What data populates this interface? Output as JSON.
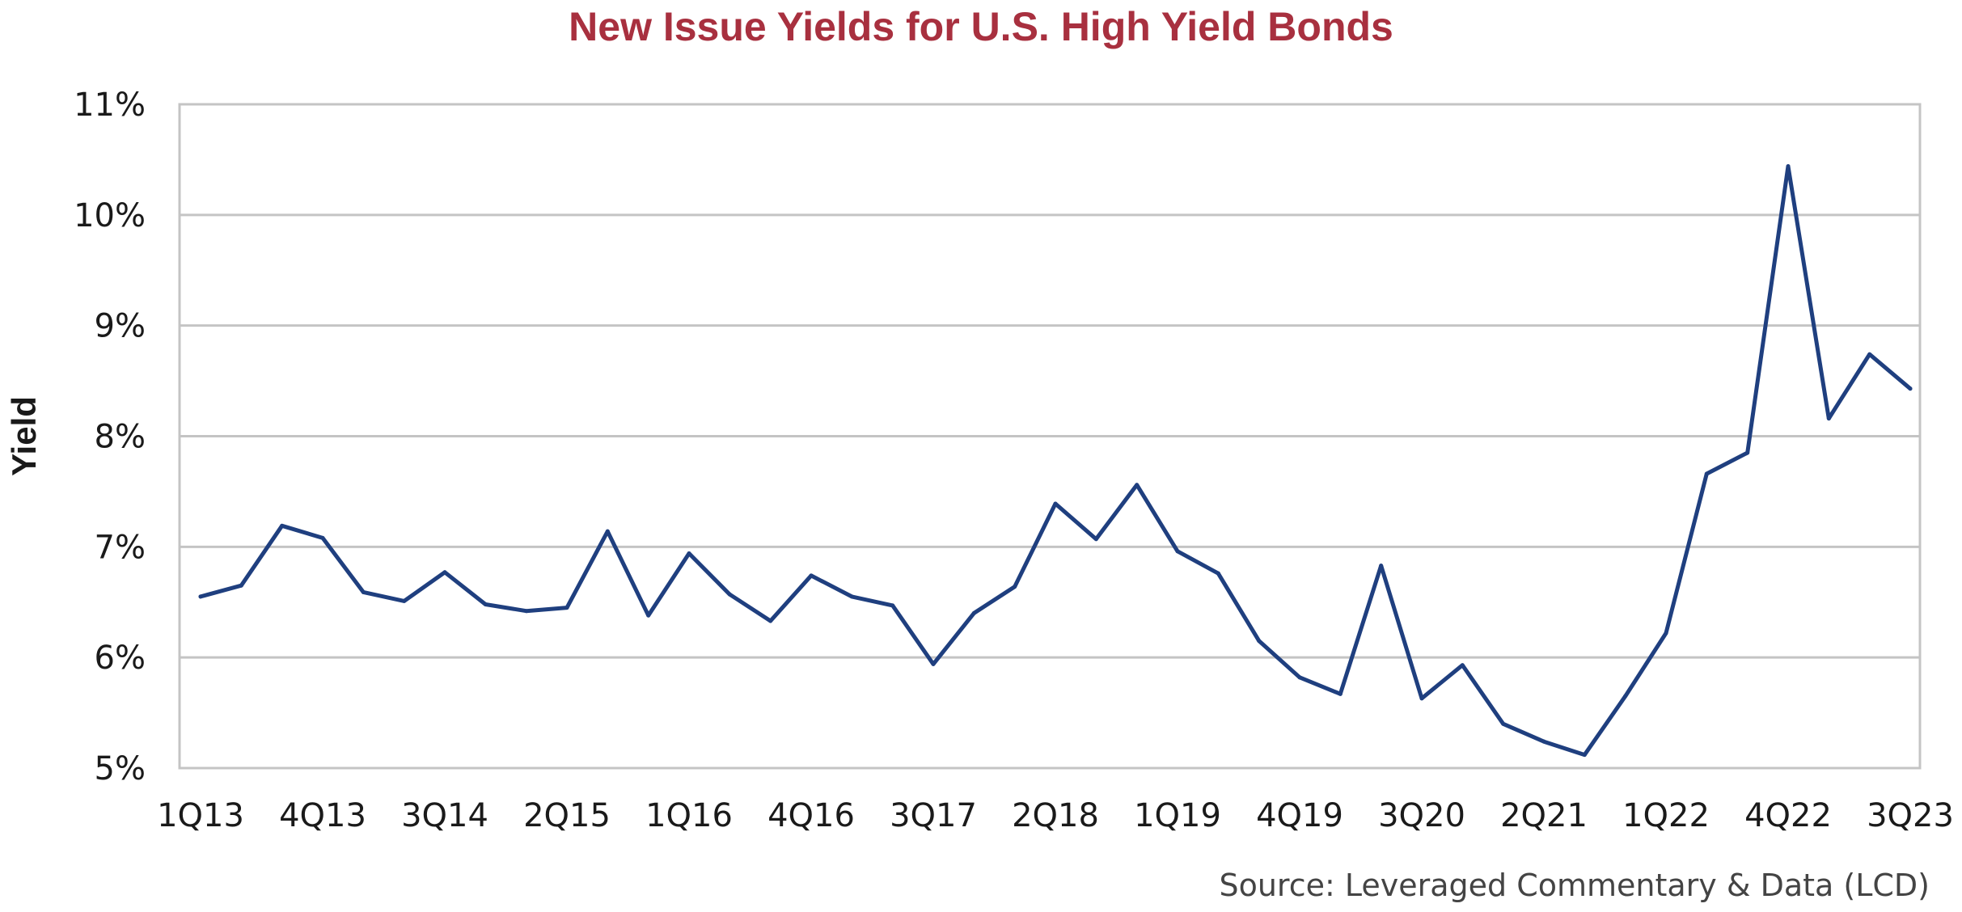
{
  "chart_data": {
    "type": "line",
    "title": "New Issue Yields for U.S. High Yield Bonds",
    "ylabel": "Yield",
    "xlabel": "",
    "source": "Source: Leveraged Commentary & Data (LCD)",
    "ylim": [
      5,
      11
    ],
    "yticks": [
      5,
      6,
      7,
      8,
      9,
      10,
      11
    ],
    "ytick_labels": [
      "5%",
      "6%",
      "7%",
      "8%",
      "9%",
      "10%",
      "11%"
    ],
    "xtick_labels": [
      "1Q13",
      "4Q13",
      "3Q14",
      "2Q15",
      "1Q16",
      "4Q16",
      "3Q17",
      "2Q18",
      "1Q19",
      "4Q19",
      "3Q20",
      "2Q21",
      "1Q22",
      "4Q22",
      "3Q23"
    ],
    "xtick_every": 3,
    "grid": true,
    "line_color": "#1f3f7f",
    "grid_color": "#c4c4c4",
    "title_color": "#a8303f",
    "categories": [
      "1Q13",
      "2Q13",
      "3Q13",
      "4Q13",
      "1Q14",
      "2Q14",
      "3Q14",
      "4Q14",
      "1Q15",
      "2Q15",
      "3Q15",
      "4Q15",
      "1Q16",
      "2Q16",
      "3Q16",
      "4Q16",
      "1Q17",
      "2Q17",
      "3Q17",
      "4Q17",
      "1Q18",
      "2Q18",
      "3Q18",
      "4Q18",
      "1Q19",
      "2Q19",
      "3Q19",
      "4Q19",
      "1Q20",
      "2Q20",
      "3Q20",
      "4Q20",
      "1Q21",
      "2Q21",
      "3Q21",
      "4Q21",
      "1Q22",
      "2Q22",
      "3Q22",
      "4Q22",
      "1Q23",
      "2Q23",
      "3Q23"
    ],
    "series": [
      {
        "values": [
          6.55,
          6.65,
          7.19,
          7.08,
          6.59,
          6.51,
          6.77,
          6.48,
          6.42,
          6.45,
          7.14,
          6.38,
          6.94,
          6.57,
          6.33,
          6.74,
          6.55,
          6.47,
          5.94,
          6.4,
          6.64,
          7.39,
          7.07,
          7.56,
          6.96,
          6.76,
          6.15,
          5.82,
          5.67,
          6.83,
          5.63,
          5.93,
          5.4,
          5.24,
          5.12,
          5.65,
          6.22,
          7.66,
          7.85,
          10.44,
          8.16,
          8.74,
          8.43
        ]
      }
    ]
  }
}
